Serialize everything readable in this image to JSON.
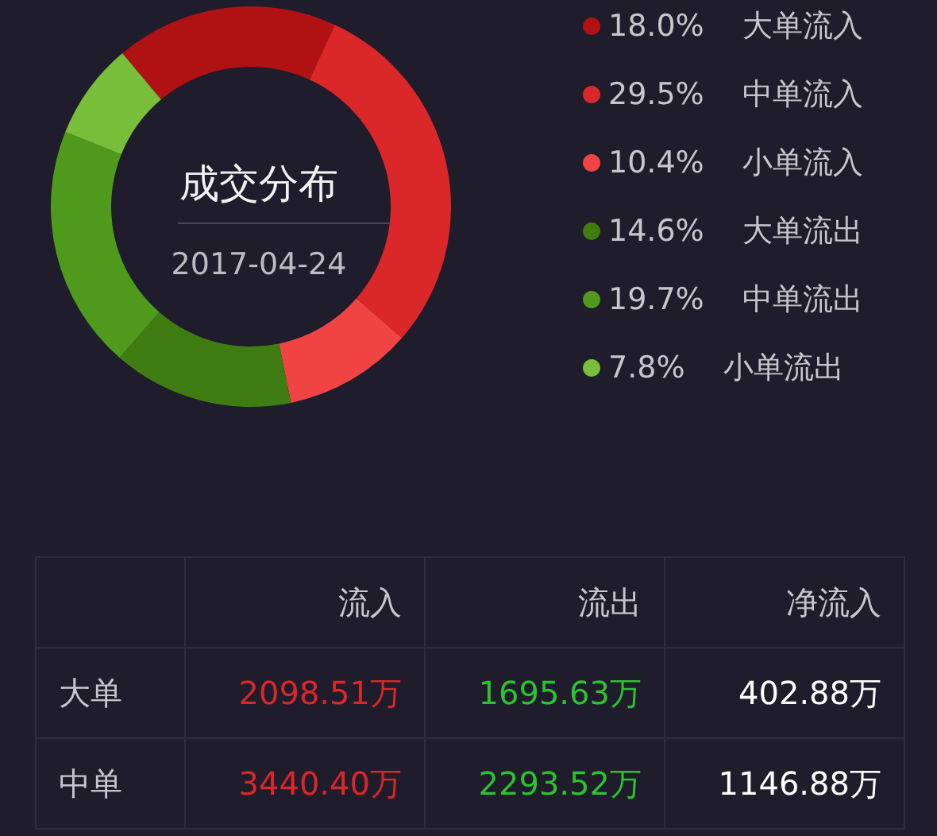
{
  "chart_data": [
    {
      "type": "donut",
      "title": "成交分布",
      "subtitle": "2017-04-24",
      "categories": [
        "大单流入",
        "中单流入",
        "小单流入",
        "大单流出",
        "中单流出",
        "小单流出"
      ],
      "values": [
        18.0,
        29.5,
        10.4,
        14.6,
        19.7,
        7.8
      ],
      "value_labels": [
        "18.0%",
        "29.5%",
        "10.4%",
        "14.6%",
        "19.7%",
        "7.8%"
      ],
      "colors": [
        "#b01213",
        "#d9272a",
        "#f04444",
        "#3f7d12",
        "#4f9a1c",
        "#78be3a"
      ],
      "legend": "right"
    },
    {
      "type": "other",
      "categories": [
        "流入",
        "流出",
        "净流入"
      ],
      "y_categories": [
        "大单",
        "中单"
      ],
      "cell_labels": [
        [
          "2098.51万",
          "1695.63万",
          "402.88万"
        ],
        [
          "3440.40万",
          "2293.52万",
          "1146.88万"
        ]
      ],
      "colors": [
        "#d9272a",
        "#2cc230",
        "#ffffff"
      ]
    }
  ]
}
